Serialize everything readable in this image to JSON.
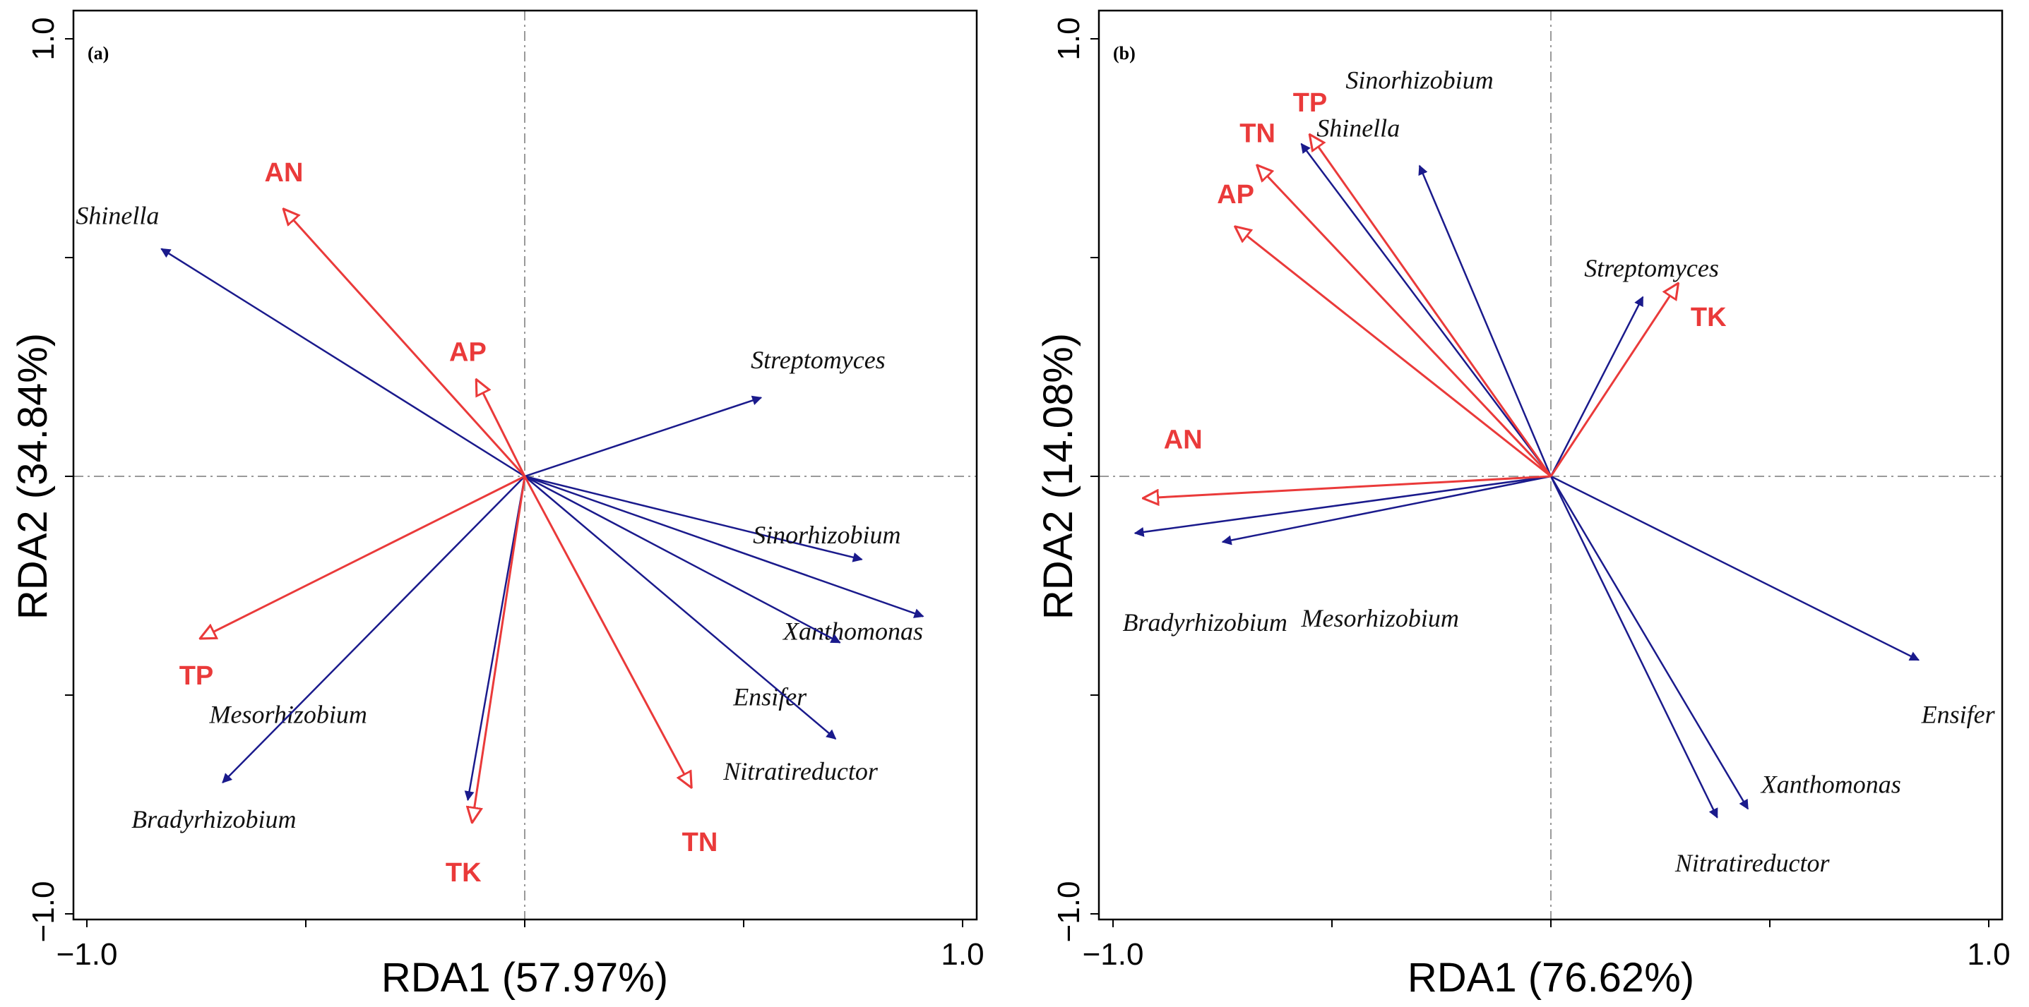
{
  "colors": {
    "species": "#1a1a8c",
    "env": "#ea3a3a",
    "refline": "#9a9a9a"
  },
  "chart_data": [
    {
      "type": "scatter",
      "subtype": "rda-biplot",
      "panel_label": "(a)",
      "xlabel": "RDA1 (57.97%)",
      "ylabel": "RDA2 (34.84%)",
      "xlim": [
        -1.0,
        1.0
      ],
      "ylim": [
        -1.0,
        1.0
      ],
      "x_tick_labels": [
        "−1.0",
        "1.0"
      ],
      "y_tick_labels": [
        "−1.0",
        "1.0"
      ],
      "species_vectors": [
        {
          "name": "Shinella",
          "x": -0.83,
          "y": 0.52
        },
        {
          "name": "Streptomyces",
          "x": 0.54,
          "y": 0.18
        },
        {
          "name": "Sinorhizobium",
          "x": 0.77,
          "y": -0.19
        },
        {
          "name": "Xanthomonas",
          "x": 0.91,
          "y": -0.32
        },
        {
          "name": "Ensifer",
          "x": 0.72,
          "y": -0.38
        },
        {
          "name": "Nitratireductor",
          "x": 0.71,
          "y": -0.6
        },
        {
          "name": "Mesorhizobium",
          "x": -0.13,
          "y": -0.74
        },
        {
          "name": "Bradyrhizobium",
          "x": -0.69,
          "y": -0.7
        }
      ],
      "env_vectors": [
        {
          "name": "AN",
          "x": -0.55,
          "y": 0.61
        },
        {
          "name": "AP",
          "x": -0.11,
          "y": 0.22
        },
        {
          "name": "TP",
          "x": -0.74,
          "y": -0.37
        },
        {
          "name": "TK",
          "x": -0.12,
          "y": -0.79
        },
        {
          "name": "TN",
          "x": 0.38,
          "y": -0.71
        }
      ],
      "label_offsets": {
        "species": {
          "Shinella": [
            -0.1,
            0.07
          ],
          "Streptomyces": [
            0.13,
            0.08
          ],
          "Sinorhizobium": [
            -0.08,
            0.05
          ],
          "Xanthomonas": [
            -0.16,
            -0.04
          ],
          "Ensifer": [
            -0.16,
            -0.13
          ],
          "Nitratireductor": [
            -0.08,
            -0.08
          ],
          "Mesorhizobium": [
            -0.41,
            0.19
          ],
          "Bradyrhizobium": [
            -0.02,
            -0.09
          ]
        },
        "env": {
          "AN": [
            0.0,
            0.08
          ],
          "AP": [
            -0.02,
            0.06
          ],
          "TP": [
            -0.01,
            -0.09
          ],
          "TK": [
            -0.02,
            -0.12
          ],
          "TN": [
            0.02,
            -0.13
          ]
        }
      }
    },
    {
      "type": "scatter",
      "subtype": "rda-biplot",
      "panel_label": "(b)",
      "xlabel": "RDA1 (76.62%)",
      "ylabel": "RDA2 (14.08%)",
      "xlim": [
        -1.0,
        1.0
      ],
      "ylim": [
        -1.0,
        1.0
      ],
      "x_tick_labels": [
        "−1.0",
        "1.0"
      ],
      "y_tick_labels": [
        "−1.0",
        "1.0"
      ],
      "species_vectors": [
        {
          "name": "Sinorhizobium",
          "x": -0.3,
          "y": 0.71
        },
        {
          "name": "Shinella",
          "x": -0.57,
          "y": 0.76
        },
        {
          "name": "Streptomyces",
          "x": 0.21,
          "y": 0.41
        },
        {
          "name": "Mesorhizobium",
          "x": -0.75,
          "y": -0.15
        },
        {
          "name": "Bradyrhizobium",
          "x": -0.95,
          "y": -0.13
        },
        {
          "name": "Ensifer",
          "x": 0.84,
          "y": -0.42
        },
        {
          "name": "Xanthomonas",
          "x": 0.45,
          "y": -0.76
        },
        {
          "name": "Nitratireductor",
          "x": 0.38,
          "y": -0.78
        }
      ],
      "env_vectors": [
        {
          "name": "TP",
          "x": -0.55,
          "y": 0.78
        },
        {
          "name": "TN",
          "x": -0.67,
          "y": 0.71
        },
        {
          "name": "AP",
          "x": -0.72,
          "y": 0.57
        },
        {
          "name": "TK",
          "x": 0.29,
          "y": 0.44
        },
        {
          "name": "AN",
          "x": -0.93,
          "y": -0.05
        }
      ],
      "label_offsets": {
        "species": {
          "Sinorhizobium": [
            0.0,
            0.19
          ],
          "Shinella": [
            0.13,
            0.03
          ],
          "Streptomyces": [
            0.02,
            0.06
          ],
          "Mesorhizobium": [
            0.36,
            -0.18
          ],
          "Bradyrhizobium": [
            0.16,
            -0.21
          ],
          "Ensifer": [
            0.09,
            -0.13
          ],
          "Xanthomonas": [
            0.19,
            0.05
          ],
          "Nitratireductor": [
            0.08,
            -0.11
          ]
        },
        "env": {
          "TP": [
            0.0,
            0.07
          ],
          "TN": [
            0.0,
            0.07
          ],
          "AP": [
            0.0,
            0.07
          ],
          "TK": [
            0.07,
            -0.08
          ],
          "AN": [
            0.09,
            0.13
          ]
        }
      }
    }
  ]
}
